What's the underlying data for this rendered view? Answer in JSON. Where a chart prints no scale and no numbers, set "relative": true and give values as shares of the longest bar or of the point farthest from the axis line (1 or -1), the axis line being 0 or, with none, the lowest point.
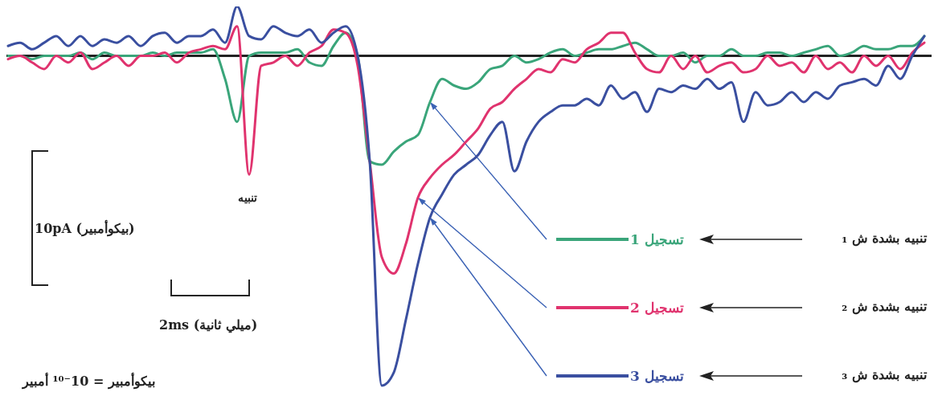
{
  "chart_data": {
    "type": "line",
    "relative": true,
    "legend": "bottom right",
    "categories": [
      null,
      null,
      null,
      null,
      null,
      null,
      null,
      null,
      null,
      null,
      null,
      null,
      null,
      null,
      null,
      null,
      null,
      null,
      null,
      null,
      null,
      null,
      null,
      null,
      null,
      null,
      null,
      null,
      null,
      null,
      null,
      null,
      null,
      null,
      null,
      null,
      null,
      null,
      null,
      null,
      null,
      null,
      null,
      null,
      null,
      null,
      null,
      null,
      null,
      null,
      null,
      null,
      null,
      null,
      null,
      null,
      null,
      null,
      null,
      null,
      null,
      null,
      null,
      null,
      null,
      null,
      null,
      null,
      null,
      null,
      null,
      null,
      null,
      null,
      null,
      null,
      null
    ],
    "series": [
      {
        "name": "تسجيل 1",
        "color": "#3aa57a",
        "values": [
          0.0,
          0.0,
          -0.01,
          0.0,
          0.0,
          0.0,
          0.01,
          -0.01,
          0.01,
          0.0,
          0.0,
          0.0,
          0.01,
          0.0,
          0.01,
          0.01,
          0.01,
          0.02,
          -0.07,
          -0.2,
          0.0,
          0.01,
          0.01,
          0.01,
          0.02,
          -0.02,
          -0.03,
          0.03,
          0.07,
          0.0,
          -0.32,
          -0.33,
          -0.29,
          -0.26,
          -0.24,
          -0.14,
          -0.07,
          -0.09,
          -0.1,
          -0.08,
          -0.04,
          -0.03,
          0.0,
          -0.02,
          -0.01,
          0.01,
          0.02,
          0.0,
          0.01,
          0.02,
          0.02,
          0.03,
          0.04,
          0.02,
          0.0,
          0.0,
          0.01,
          -0.02,
          0.0,
          0.0,
          0.02,
          0.0,
          0.0,
          0.01,
          0.01,
          0.0,
          0.01,
          0.02,
          0.03,
          0.0,
          0.01,
          0.03,
          0.02,
          0.02,
          0.03,
          0.03,
          0.06
        ]
      },
      {
        "name": "تسجيل 2",
        "color": "#e0336e",
        "values": [
          -0.01,
          0.0,
          -0.02,
          -0.04,
          0.0,
          -0.02,
          0.01,
          -0.04,
          -0.02,
          0.0,
          -0.03,
          0.0,
          0.0,
          0.01,
          -0.02,
          0.01,
          0.02,
          0.03,
          0.02,
          0.09,
          -0.36,
          -0.03,
          -0.02,
          0.0,
          -0.03,
          0.01,
          0.03,
          0.08,
          0.07,
          -0.03,
          -0.32,
          -0.61,
          -0.66,
          -0.57,
          -0.43,
          -0.37,
          -0.33,
          -0.3,
          -0.26,
          -0.22,
          -0.16,
          -0.14,
          -0.1,
          -0.07,
          -0.04,
          -0.05,
          -0.01,
          -0.02,
          0.02,
          0.04,
          0.07,
          0.07,
          0.01,
          -0.04,
          -0.05,
          0.0,
          -0.04,
          0.0,
          -0.05,
          -0.03,
          -0.02,
          -0.05,
          -0.04,
          0.0,
          -0.03,
          -0.02,
          -0.05,
          0.0,
          -0.04,
          -0.02,
          -0.05,
          0.0,
          -0.03,
          0.0,
          -0.04,
          0.01,
          0.04
        ]
      },
      {
        "name": "تسجيل 3",
        "color": "#3a4fa0",
        "values": [
          0.03,
          0.04,
          0.02,
          0.04,
          0.06,
          0.03,
          0.06,
          0.03,
          0.05,
          0.04,
          0.06,
          0.03,
          0.06,
          0.07,
          0.04,
          0.06,
          0.06,
          0.08,
          0.04,
          0.15,
          0.06,
          0.05,
          0.09,
          0.07,
          0.06,
          0.08,
          0.04,
          0.07,
          0.09,
          0.0,
          -0.32,
          -1,
          -0.96,
          -0.8,
          -0.63,
          -0.49,
          -0.42,
          -0.36,
          -0.33,
          -0.3,
          -0.24,
          -0.2,
          -0.35,
          -0.26,
          -0.2,
          -0.17,
          -0.15,
          -0.15,
          -0.13,
          -0.15,
          -0.09,
          -0.13,
          -0.11,
          -0.17,
          -0.1,
          -0.11,
          -0.09,
          -0.1,
          -0.07,
          -0.1,
          -0.08,
          -0.2,
          -0.11,
          -0.15,
          -0.14,
          -0.11,
          -0.14,
          -0.11,
          -0.13,
          -0.09,
          -0.08,
          -0.07,
          -0.09,
          -0.03,
          -0.07,
          0.0,
          0.06
        ]
      }
    ],
    "annotations": [
      "تنبيه",
      "10pA (بيكوأمبير)",
      "2ms (ميلي ثانية)",
      "بيكوأمبير = 10⁻¹⁰ أمبير",
      "تنبيه بشدة ش ₁",
      "تنبيه بشدة ش ₂",
      "تنبيه بشدة ش ₃"
    ]
  }
}
